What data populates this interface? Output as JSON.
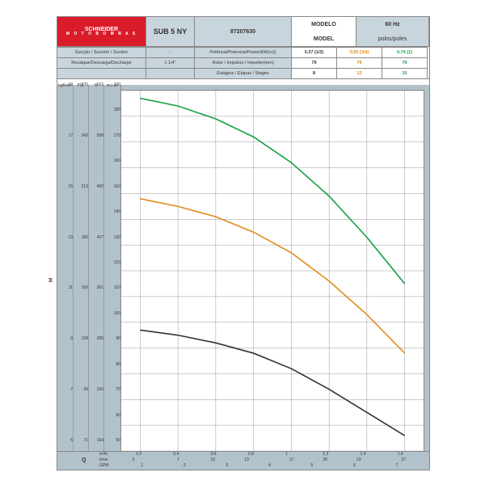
{
  "brand": {
    "name": "SCHNEIDER",
    "sub": "M O T O B O M B A S",
    "bg": "#d91b2a"
  },
  "header": {
    "modelo_label": "MODELO",
    "model_label": "MODEL",
    "model_value": "SUB 5 NY",
    "code": "87207630",
    "hz": "60 Hz",
    "poles": "polos/poles"
  },
  "spec": {
    "suction_label": "Sucção / Succión / Suction",
    "suction_val": "-",
    "discharge_label": "Recalque/Descarga/Discharge",
    "discharge_val": "1 1/4\"",
    "rows": [
      {
        "label": "Potência/Potencia/Power(kW(cv))",
        "v": [
          "0,37 (1/2)",
          "0,55 (3/4)",
          "0,74 (1)"
        ]
      },
      {
        "label": "Rotor / Impulsor / Impeller(mm)",
        "v": [
          "79",
          "79",
          "79"
        ]
      },
      {
        "label": "Estágios / Etapas / Stages",
        "v": [
          "8",
          "12",
          "15"
        ]
      }
    ],
    "colors": [
      "#333333",
      "#e08b1a",
      "#1aa24a"
    ]
  },
  "chart": {
    "bg": "#b2c2cc",
    "plot_bg": "#ffffff",
    "grid": "#999999",
    "y_units": [
      "kgf/cm²",
      "PSI",
      "ft",
      "m.c.a."
    ],
    "y_mca": {
      "min": 50,
      "max": 190,
      "step": 10
    },
    "y_kgf": [
      5,
      7,
      9,
      11,
      13,
      15,
      17,
      19
    ],
    "y_psi": [
      71,
      99,
      128,
      156,
      185,
      213,
      242,
      270
    ],
    "y_ft": [
      164,
      230,
      295,
      361,
      427,
      492,
      558,
      623
    ],
    "x_m3h": [
      0.2,
      0.4,
      0.6,
      0.8,
      1.0,
      1.2,
      1.4,
      1.6
    ],
    "x_lmin": [
      3,
      7,
      10,
      13,
      17,
      20,
      23,
      27
    ],
    "x_gpm": [
      1,
      2,
      3,
      4,
      5,
      6,
      7
    ],
    "x_units": [
      "m³/h",
      "l/min",
      "GPM"
    ],
    "curves": [
      {
        "color": "#333333",
        "pts": [
          [
            0.2,
            97
          ],
          [
            0.4,
            95
          ],
          [
            0.6,
            92
          ],
          [
            0.8,
            88
          ],
          [
            1.0,
            82
          ],
          [
            1.2,
            74
          ],
          [
            1.4,
            65
          ],
          [
            1.6,
            56
          ]
        ]
      },
      {
        "color": "#e08b1a",
        "pts": [
          [
            0.2,
            148
          ],
          [
            0.4,
            145
          ],
          [
            0.6,
            141
          ],
          [
            0.8,
            135
          ],
          [
            1.0,
            127
          ],
          [
            1.2,
            116
          ],
          [
            1.4,
            103
          ],
          [
            1.6,
            88
          ]
        ]
      },
      {
        "color": "#1aa24a",
        "pts": [
          [
            0.2,
            187
          ],
          [
            0.4,
            184
          ],
          [
            0.6,
            179
          ],
          [
            0.8,
            172
          ],
          [
            1.0,
            162
          ],
          [
            1.2,
            149
          ],
          [
            1.4,
            133
          ],
          [
            1.6,
            115
          ]
        ]
      }
    ],
    "H_label": "H",
    "Q_label": "Q"
  }
}
